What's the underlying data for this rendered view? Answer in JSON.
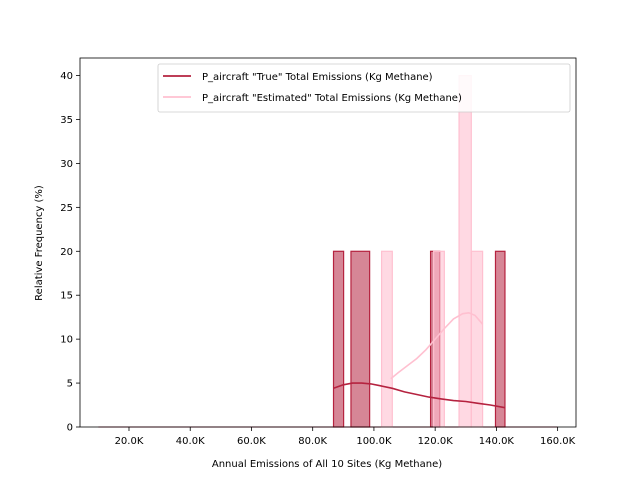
{
  "chart_data": {
    "type": "histogram",
    "xlabel": "Annual Emissions of All 10 Sites (Kg Methane)",
    "ylabel": "Relative Frequency (%)",
    "xlim": [
      4000,
      166000
    ],
    "ylim": [
      0,
      42
    ],
    "x_ticks": [
      {
        "value": 20000,
        "label": "20.0K"
      },
      {
        "value": 40000,
        "label": "40.0K"
      },
      {
        "value": 60000,
        "label": "60.0K"
      },
      {
        "value": 80000,
        "label": "80.0K"
      },
      {
        "value": 100000,
        "label": "100.0K"
      },
      {
        "value": 120000,
        "label": "120.0K"
      },
      {
        "value": 140000,
        "label": "140.0K"
      },
      {
        "value": 160000,
        "label": "160.0K"
      }
    ],
    "y_ticks": [
      0,
      5,
      10,
      15,
      20,
      25,
      30,
      35,
      40
    ],
    "grid": false,
    "legend_position": "top-right",
    "series": [
      {
        "name": "P_aircraft \"True\" Total Emissions (Kg Methane)",
        "color": "#b5223f",
        "bars": [
          {
            "x0": 86800,
            "x1": 90100,
            "value": 20
          },
          {
            "x0": 92500,
            "x1": 98600,
            "value": 20
          },
          {
            "x0": 118500,
            "x1": 121500,
            "value": 20
          },
          {
            "x0": 139700,
            "x1": 142800,
            "value": 20
          }
        ],
        "kde": [
          [
            86800,
            4.4
          ],
          [
            90000,
            4.8
          ],
          [
            93000,
            5.0
          ],
          [
            96000,
            5.0
          ],
          [
            99000,
            4.9
          ],
          [
            102000,
            4.7
          ],
          [
            106000,
            4.4
          ],
          [
            110000,
            4.0
          ],
          [
            114000,
            3.7
          ],
          [
            118000,
            3.4
          ],
          [
            122000,
            3.2
          ],
          [
            126000,
            3.0
          ],
          [
            130000,
            2.9
          ],
          [
            134000,
            2.7
          ],
          [
            138000,
            2.5
          ],
          [
            142800,
            2.2
          ]
        ]
      },
      {
        "name": "P_aircraft \"Estimated\" Total Emissions (Kg Methane)",
        "color": "#ffc0d0",
        "bars": [
          {
            "x0": 102500,
            "x1": 106000,
            "value": 20
          },
          {
            "x0": 119500,
            "x1": 123000,
            "value": 20
          },
          {
            "x0": 127800,
            "x1": 131800,
            "value": 40
          },
          {
            "x0": 131800,
            "x1": 135500,
            "value": 20
          }
        ],
        "kde": [
          [
            105500,
            5.5
          ],
          [
            108000,
            6.2
          ],
          [
            111000,
            7.0
          ],
          [
            114000,
            7.8
          ],
          [
            117000,
            8.8
          ],
          [
            120000,
            10.0
          ],
          [
            123000,
            11.2
          ],
          [
            126000,
            12.3
          ],
          [
            129000,
            12.9
          ],
          [
            131000,
            13.0
          ],
          [
            133000,
            12.7
          ],
          [
            135500,
            11.7
          ]
        ]
      }
    ]
  }
}
